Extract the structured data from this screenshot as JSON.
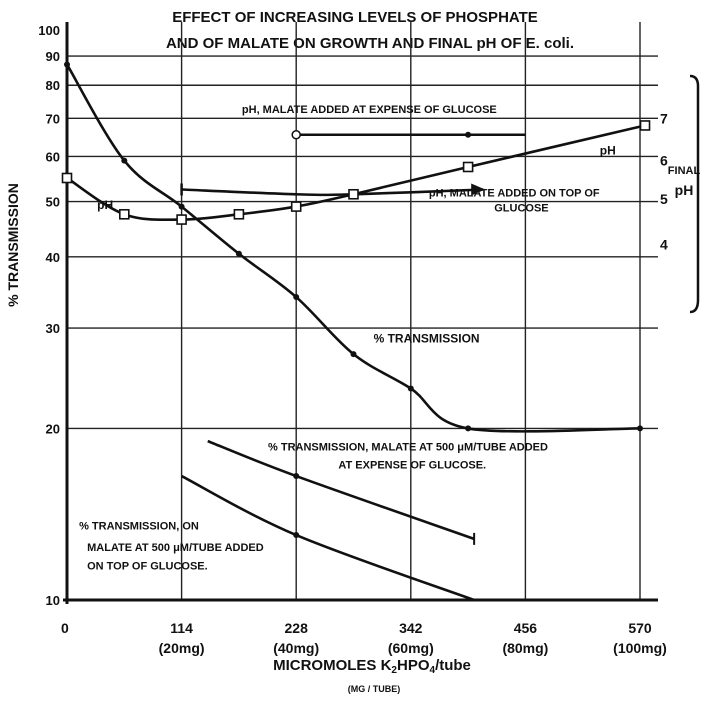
{
  "chart_data": {
    "type": "line",
    "title_line1": "EFFECT OF INCREASING LEVELS OF PHOSPHATE",
    "title_line2": "AND OF MALATE ON GROWTH AND FINAL pH OF E. coli.",
    "ylabel": "% TRANSMISSION",
    "xlabel": "MICROMOLES K2HPO4/tube",
    "xlabel_sub": "(MG / TUBE)",
    "y_scale": "log",
    "ylim": [
      10,
      100
    ],
    "xlim": [
      0,
      570
    ],
    "grid": true,
    "y_ticks": [
      10,
      20,
      30,
      40,
      50,
      60,
      70,
      80,
      90,
      100
    ],
    "y_tick_labels": [
      "10",
      "20",
      "30",
      "40",
      "50",
      "60",
      "70",
      "80",
      "90",
      "100"
    ],
    "x_ticks": [
      0,
      114,
      228,
      342,
      456,
      570
    ],
    "x_tick_labels": [
      "0",
      "114",
      "228",
      "342",
      "456",
      "570"
    ],
    "x_tick_sublabels": [
      "",
      "(20mg)",
      "(40mg)",
      "(60mg)",
      "(80mg)",
      "(100mg)"
    ],
    "right_axis": {
      "label_line1": "FINAL",
      "label_line2": "pH",
      "ticks": [
        {
          "label": "7",
          "value": 7,
          "y_at": 70
        },
        {
          "label": "6",
          "value": 6,
          "y_at": 59
        },
        {
          "label": "5",
          "value": 5,
          "y_at": 50.5
        },
        {
          "label": "4",
          "value": 4,
          "y_at": 42
        }
      ]
    },
    "series": [
      {
        "name": "% TRANSMISSION",
        "x": [
          0,
          57,
          114,
          171,
          228,
          285,
          342,
          399,
          570
        ],
        "y": [
          87,
          59,
          49,
          40.5,
          34,
          27,
          23.5,
          20,
          20
        ]
      },
      {
        "name": "pH",
        "axis": "pH",
        "x": [
          0,
          57,
          114,
          171,
          228,
          285,
          399,
          575
        ],
        "y": [
          5.5,
          4.8,
          4.65,
          4.8,
          5.2,
          5.25,
          5.85,
          6.8
        ],
        "y_percent": [
          55,
          47.5,
          46.5,
          47.5,
          49,
          51.5,
          57.5,
          68
        ]
      },
      {
        "name": "pH, MALATE ADDED AT EXPENSE OF GLUCOSE",
        "axis": "pH",
        "x": [
          228,
          399,
          456
        ],
        "y_percent": [
          65.5,
          65.5,
          65.5
        ]
      },
      {
        "name": "pH, MALATE ADDED ON TOP OF GLUCOSE",
        "axis": "pH",
        "x": [
          114,
          228,
          285,
          414
        ],
        "y_percent": [
          52.5,
          51.5,
          51.5,
          52.5
        ]
      },
      {
        "name": "% TRANSMISSION, MALATE AT 500 μM/TUBE ADDED AT EXPENSE OF GLUCOSE.",
        "x": [
          140,
          228,
          405
        ],
        "y": [
          19,
          16.5,
          12.8
        ]
      },
      {
        "name": "% TRANSMISSION, ON MALATE AT 500 μM/TUBE ADDED ON TOP OF GLUCOSE.",
        "x": [
          114,
          228,
          405
        ],
        "y": [
          16.5,
          13,
          10
        ]
      }
    ],
    "annotations": [
      {
        "text": "pH",
        "x": 30,
        "y": 48.5
      },
      {
        "text": "pH",
        "x": 530,
        "y": 60.5
      },
      {
        "text": "pH, MALATE ADDED AT EXPENSE OF GLUCOSE",
        "x": 174,
        "y": 71.5
      },
      {
        "text": "pH, MALATE ADDED ON TOP OF",
        "x": 360,
        "y": 51
      },
      {
        "text": "GLUCOSE",
        "x": 425,
        "y": 48
      },
      {
        "text": "% TRANSMISSION",
        "x": 305,
        "y": 28.3
      },
      {
        "text": "% TRANSMISSION, MALATE AT 500 μM/TUBE ADDED",
        "x": 200,
        "y": 18.3
      },
      {
        "text": "AT EXPENSE OF GLUCOSE.",
        "x": 270,
        "y": 17
      },
      {
        "text": "% TRANSMISSION, ON",
        "x": 12,
        "y": 13.3
      },
      {
        "text": "MALATE AT 500 μM/TUBE ADDED",
        "x": 20,
        "y": 12.2
      },
      {
        "text": "ON TOP OF GLUCOSE.",
        "x": 20,
        "y": 11.3
      }
    ]
  }
}
